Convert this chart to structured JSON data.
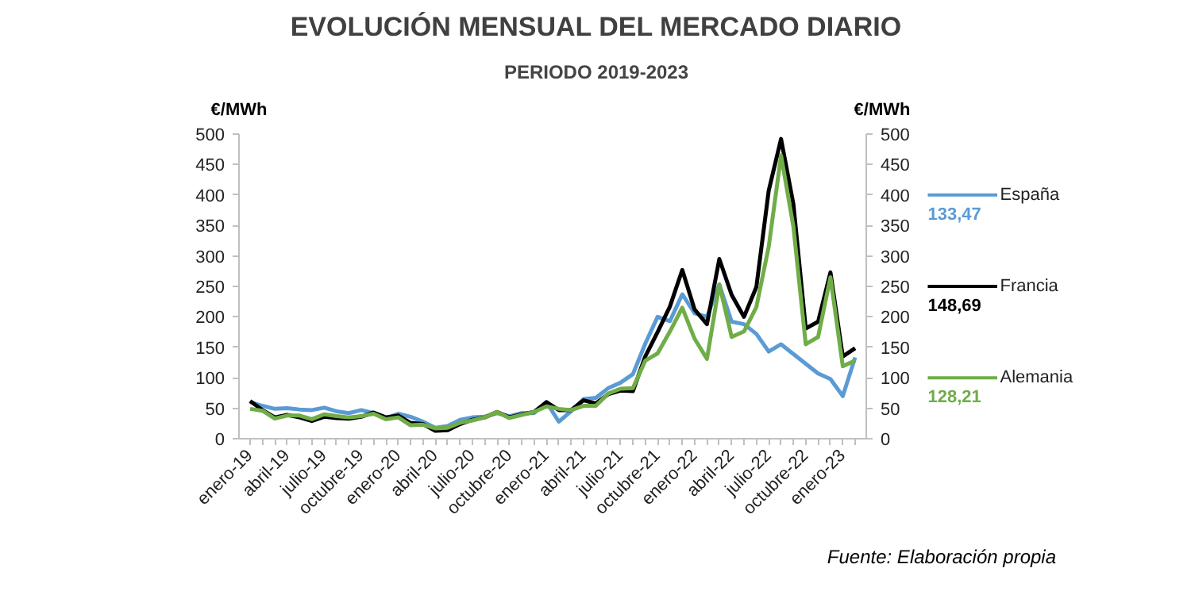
{
  "chart_data": {
    "type": "line",
    "title": "EVOLUCIÓN MENSUAL DEL MERCADO DIARIO",
    "subtitle": "PERIODO 2019-2023",
    "ylabel": "€/MWh",
    "y2label": "€/MWh",
    "categories": [
      "enero-19",
      null,
      null,
      "abril-19",
      null,
      null,
      "julio-19",
      null,
      null,
      "octubre-19",
      null,
      null,
      "enero-20",
      null,
      null,
      "abril-20",
      null,
      null,
      "julio-20",
      null,
      null,
      "octubre-20",
      null,
      null,
      "enero-21",
      null,
      null,
      "abril-21",
      null,
      null,
      "julio-21",
      null,
      null,
      "octubre-21",
      null,
      null,
      "enero-22",
      null,
      null,
      "abril-22",
      null,
      null,
      "julio-22",
      null,
      null,
      "octubre-22",
      null,
      null,
      "enero-23",
      null
    ],
    "ylim": [
      0,
      500
    ],
    "yticks": [
      0,
      50,
      100,
      150,
      200,
      250,
      300,
      350,
      400,
      450,
      500
    ],
    "y2lim": [
      0,
      500
    ],
    "y2ticks": [
      0,
      50,
      100,
      150,
      200,
      250,
      300,
      350,
      400,
      450,
      500
    ],
    "series": [
      {
        "name": "España",
        "color": "#5b9bd5",
        "values": [
          60,
          54,
          49,
          50,
          48,
          47,
          51,
          45,
          42,
          47,
          42,
          34,
          41,
          36,
          28,
          18,
          21,
          31,
          35,
          36,
          42,
          37,
          42,
          42,
          60,
          28,
          45,
          65,
          67,
          83,
          92,
          106,
          156,
          200,
          193,
          237,
          206,
          200,
          253,
          192,
          188,
          172,
          143,
          155,
          139,
          123,
          107,
          98,
          70,
          133.47
        ]
      },
      {
        "name": "Francia",
        "color": "#000000",
        "values": [
          62,
          47,
          35,
          39,
          35,
          29,
          36,
          34,
          33,
          36,
          43,
          35,
          38,
          26,
          24,
          13,
          14,
          24,
          31,
          35,
          44,
          35,
          40,
          44,
          60,
          47,
          47,
          63,
          58,
          73,
          79,
          78,
          135,
          175,
          217,
          277,
          212,
          188,
          295,
          236,
          200,
          249,
          407,
          492,
          385,
          181,
          192,
          273,
          135,
          148.69
        ]
      },
      {
        "name": "Alemania",
        "color": "#70ad47",
        "values": [
          49,
          46,
          33,
          38,
          38,
          32,
          40,
          37,
          35,
          37,
          41,
          32,
          35,
          22,
          23,
          17,
          18,
          26,
          30,
          35,
          44,
          34,
          39,
          44,
          53,
          49,
          47,
          54,
          54,
          74,
          82,
          83,
          128,
          140,
          176,
          215,
          164,
          131,
          253,
          167,
          176,
          216,
          315,
          465,
          348,
          155,
          167,
          265,
          119,
          128.21
        ]
      }
    ],
    "legend": "right",
    "annotations": [
      "133,47",
      "148,69",
      "128,21",
      "Fuente: Elaboración propia"
    ]
  }
}
